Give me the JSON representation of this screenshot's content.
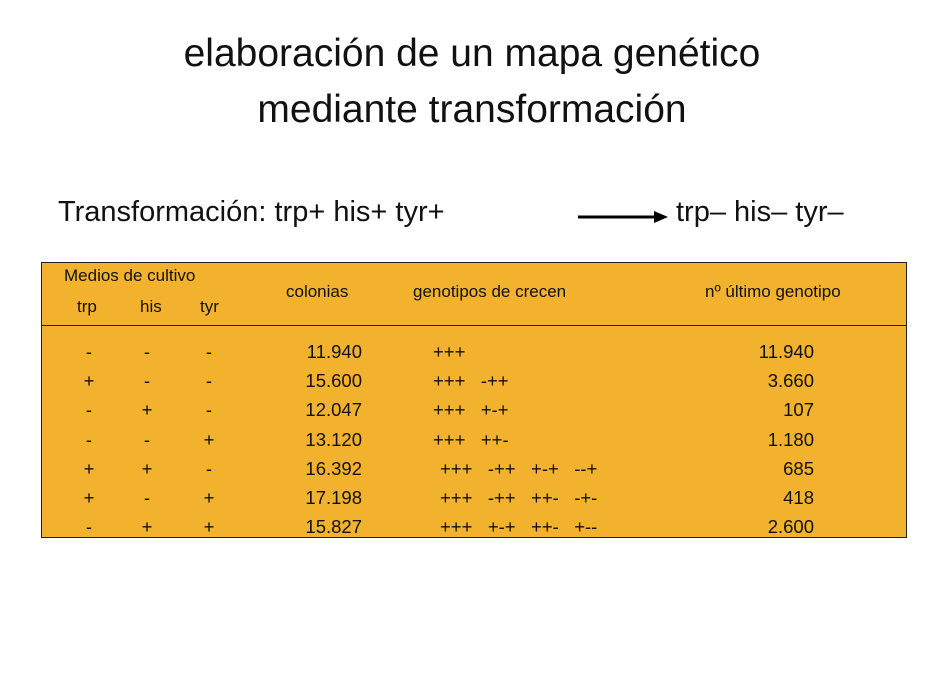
{
  "title_line1": "elaboración de un mapa genético",
  "title_line2": "mediante transformación",
  "subtitle_left": "Transformación: trp+ his+ tyr+",
  "subtitle_right": "trp– his– tyr–",
  "arrow_icon": "right-arrow-icon",
  "headers": {
    "medios": "Medios de cultivo",
    "trp": "trp",
    "his": "his",
    "tyr": "tyr",
    "colonias": "colonias",
    "genotipos": "genotipos de crecen",
    "ultimo": "nº último genotipo"
  },
  "rows": [
    {
      "trp": "-",
      "his": "-",
      "tyr": "-",
      "colonias": "11.940",
      "genotipos": "+++",
      "ultimo": "11.940"
    },
    {
      "trp": "+",
      "his": "-",
      "tyr": "-",
      "colonias": "15.600",
      "genotipos": "+++   -++",
      "ultimo": "3.660"
    },
    {
      "trp": "-",
      "his": "+",
      "tyr": "-",
      "colonias": "12.047",
      "genotipos": "+++   +-+",
      "ultimo": "107"
    },
    {
      "trp": "-",
      "his": "-",
      "tyr": "+",
      "colonias": "13.120",
      "genotipos": "+++   ++-",
      "ultimo": "1.180"
    },
    {
      "trp": "+",
      "his": "+",
      "tyr": "-",
      "colonias": "16.392",
      "genotipos": "+++   -++   +-+   --+",
      "ultimo": "685"
    },
    {
      "trp": "+",
      "his": "-",
      "tyr": "+",
      "colonias": "17.198",
      "genotipos": "+++   -++   ++-   -+-",
      "ultimo": "418"
    },
    {
      "trp": "-",
      "his": "+",
      "tyr": "+",
      "colonias": "15.827",
      "genotipos": "+++   +-+   ++-   +--",
      "ultimo": "2.600"
    }
  ]
}
